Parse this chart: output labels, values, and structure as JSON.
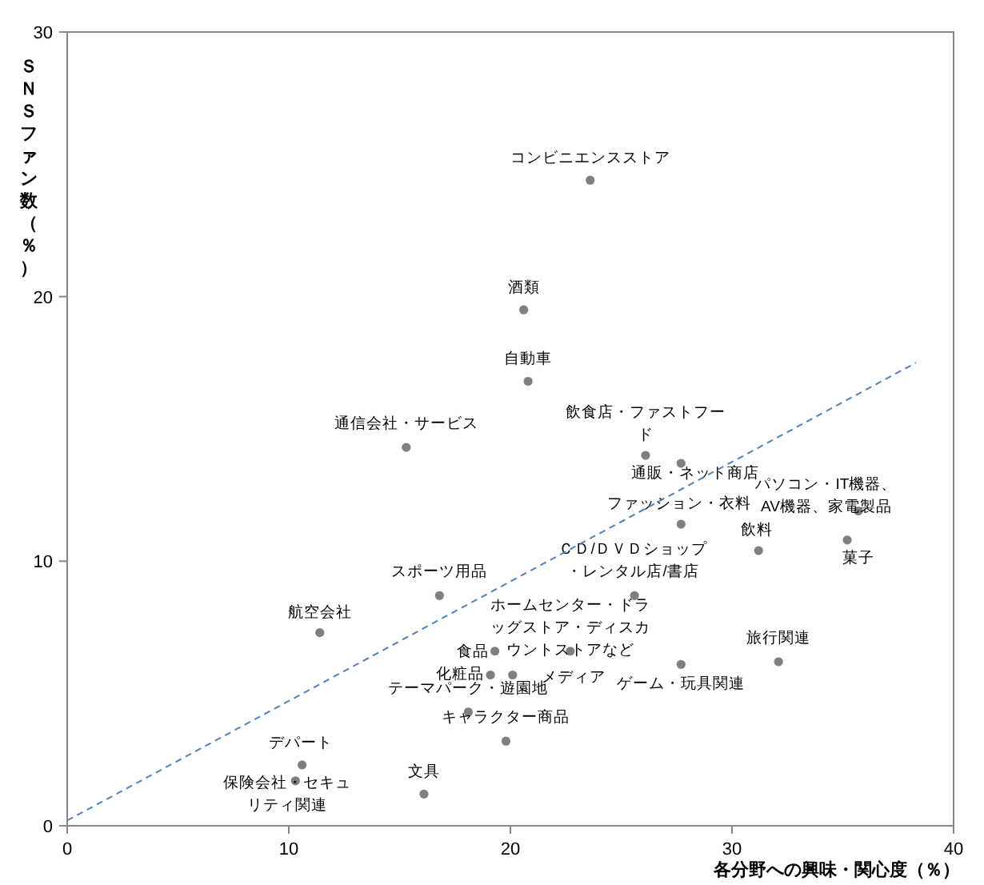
{
  "chart_data": {
    "type": "scatter",
    "xlabel": "各分野への興味・関心度（％）",
    "ylabel": "ＳＮＳファン数（％）",
    "xlim": [
      0,
      40
    ],
    "ylim": [
      0,
      30
    ],
    "xticks": [
      0,
      10,
      20,
      30,
      40
    ],
    "yticks": [
      0,
      10,
      20,
      30
    ],
    "marker": "circle",
    "color": "#7f7f7f",
    "series": [
      {
        "name": "コンビニエンスストア",
        "x": [
          23.6
        ],
        "values": [
          24.4
        ]
      },
      {
        "name": "酒類",
        "x": [
          20.6
        ],
        "values": [
          19.5
        ]
      },
      {
        "name": "自動車",
        "x": [
          20.8
        ],
        "values": [
          16.8
        ]
      },
      {
        "name": "通信会社・サービス",
        "x": [
          15.3
        ],
        "values": [
          14.3
        ]
      },
      {
        "name": "飲食店・ファストフード",
        "x": [
          26.1
        ],
        "values": [
          14.0
        ]
      },
      {
        "name": "通販・ネット商店",
        "x": [
          27.7
        ],
        "values": [
          13.7
        ]
      },
      {
        "name": "ファッション・衣料",
        "x": [
          27.7
        ],
        "values": [
          11.4
        ]
      },
      {
        "name": "パソコン・IT機器、AV機器、家電製品",
        "x": [
          35.7
        ],
        "values": [
          11.9
        ]
      },
      {
        "name": "飲料",
        "x": [
          31.2
        ],
        "values": [
          10.4
        ]
      },
      {
        "name": "菓子",
        "x": [
          35.2
        ],
        "values": [
          10.8
        ]
      },
      {
        "name": "ＣＤ/ＤＶＤショップ・レンタル店/書店",
        "x": [
          25.6
        ],
        "values": [
          8.7
        ]
      },
      {
        "name": "ホームセンター・ドラッグストア・ディスカウントストアなど",
        "x": [
          22.7
        ],
        "values": [
          6.6
        ]
      },
      {
        "name": "ゲーム・玩具関連",
        "x": [
          27.7
        ],
        "values": [
          6.1
        ]
      },
      {
        "name": "旅行関連",
        "x": [
          32.1
        ],
        "values": [
          6.2
        ]
      },
      {
        "name": "スポーツ用品",
        "x": [
          16.8
        ],
        "values": [
          8.7
        ]
      },
      {
        "name": "航空会社",
        "x": [
          11.4
        ],
        "values": [
          7.3
        ]
      },
      {
        "name": "食品",
        "x": [
          19.3
        ],
        "values": [
          6.6
        ]
      },
      {
        "name": "化粧品",
        "x": [
          19.1
        ],
        "values": [
          5.7
        ]
      },
      {
        "name": "メディア",
        "x": [
          20.1
        ],
        "values": [
          5.7
        ]
      },
      {
        "name": "テーマパーク・遊園地",
        "x": [
          18.1
        ],
        "values": [
          4.3
        ]
      },
      {
        "name": "キャラクター商品",
        "x": [
          19.8
        ],
        "values": [
          3.2
        ]
      },
      {
        "name": "デパート",
        "x": [
          10.6
        ],
        "values": [
          2.3
        ]
      },
      {
        "name": "保険会社・セキュリティ関連",
        "x": [
          10.3
        ],
        "values": [
          1.7
        ]
      },
      {
        "name": "文具",
        "x": [
          16.1
        ],
        "values": [
          1.2
        ]
      },
      {
        "type": "line",
        "x": [
          0,
          38.3
        ],
        "values": [
          0.2,
          17.5
        ],
        "color": "#4f81bd",
        "line_style": "dashed",
        "marker": "none"
      }
    ]
  }
}
